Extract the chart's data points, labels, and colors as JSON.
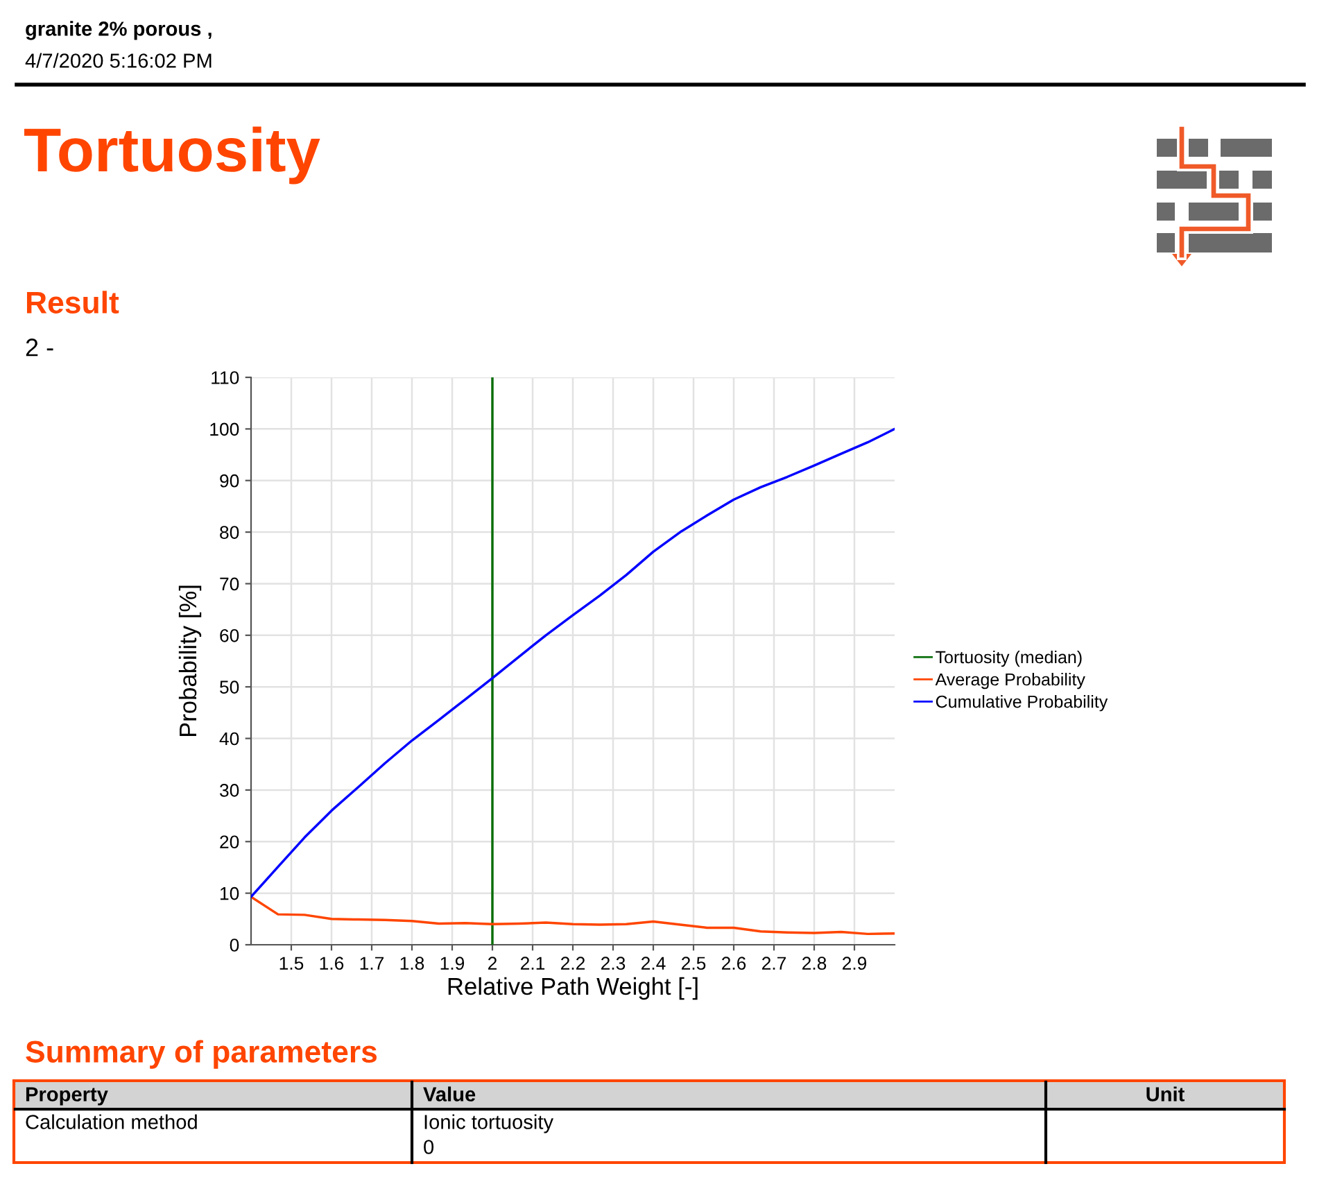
{
  "chart_data": {
    "type": "line",
    "title": "Tortuosity",
    "xlabel": "Relative Path Weight [-]",
    "ylabel": "Probability [%]",
    "xlim": [
      1.4,
      3.0
    ],
    "ylim": [
      0,
      110
    ],
    "xticks": [
      1.5,
      1.6,
      1.7,
      1.8,
      1.9,
      2,
      2.1,
      2.2,
      2.3,
      2.4,
      2.5,
      2.6,
      2.7,
      2.8,
      2.9
    ],
    "yticks": [
      0,
      10,
      20,
      30,
      40,
      50,
      60,
      70,
      80,
      90,
      100,
      110
    ],
    "grid": true,
    "legend": "right",
    "series": [
      {
        "name": "Tortuosity (median)",
        "color": "#0b6e0b",
        "x": [
          2,
          2
        ],
        "values": [
          0,
          110
        ]
      },
      {
        "name": "Average Probability",
        "color": "#ff4500",
        "x": [
          1.4,
          1.467,
          1.533,
          1.6,
          1.667,
          1.733,
          1.8,
          1.867,
          1.933,
          2.0,
          2.067,
          2.133,
          2.2,
          2.267,
          2.333,
          2.4,
          2.467,
          2.533,
          2.6,
          2.667,
          2.733,
          2.8,
          2.867,
          2.933,
          3.0
        ],
        "values": [
          9.3,
          5.9,
          5.8,
          5.0,
          4.9,
          4.8,
          4.6,
          4.1,
          4.2,
          4.0,
          4.1,
          4.3,
          4.0,
          3.9,
          4.0,
          4.5,
          3.9,
          3.3,
          3.3,
          2.6,
          2.4,
          2.3,
          2.5,
          2.1,
          2.2
        ]
      },
      {
        "name": "Cumulative Probability",
        "color": "#0000ff",
        "x": [
          1.4,
          1.467,
          1.533,
          1.6,
          1.667,
          1.733,
          1.8,
          1.867,
          1.933,
          2.0,
          2.067,
          2.133,
          2.2,
          2.267,
          2.333,
          2.4,
          2.467,
          2.533,
          2.6,
          2.667,
          2.733,
          2.8,
          2.867,
          2.933,
          3.0
        ],
        "values": [
          9.3,
          15.1,
          20.8,
          26.0,
          30.6,
          35.2,
          39.6,
          43.6,
          47.6,
          51.7,
          55.9,
          60.0,
          63.9,
          67.7,
          71.7,
          76.2,
          80.0,
          83.2,
          86.3,
          88.7,
          90.7,
          92.9,
          95.2,
          97.4,
          100
        ]
      }
    ],
    "annotations": [
      "granite 2% porous ,",
      "4/7/2020 5:16:02 PM",
      "Result",
      "2 -",
      "Summary of parameters",
      "Property",
      "Value",
      "Unit",
      "Calculation method",
      "Ionic tortuosity",
      "0"
    ]
  }
}
